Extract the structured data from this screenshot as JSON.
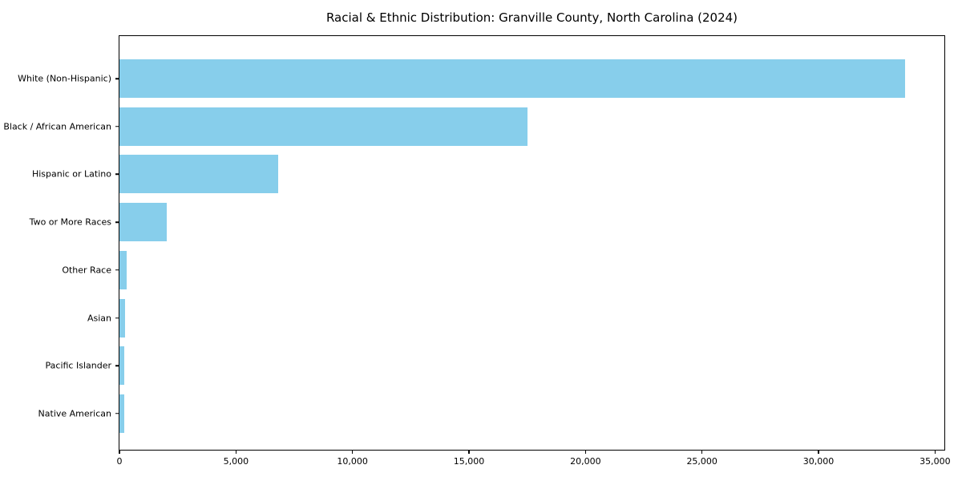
{
  "figure": {
    "title": "Racial & Ethnic Distribution: Granville County, North Carolina (2024)",
    "background_color": "#ffffff",
    "text_color": "#000000"
  },
  "chart_data": {
    "type": "bar",
    "orientation": "horizontal",
    "title": "Racial & Ethnic Distribution: Granville County, North Carolina (2024)",
    "categories": [
      "White (Non-Hispanic)",
      "Black / African American",
      "Hispanic or Latino",
      "Two or More Races",
      "Other Race",
      "Asian",
      "Pacific Islander",
      "Native American"
    ],
    "values": [
      33700,
      17500,
      6800,
      2030,
      300,
      255,
      220,
      190
    ],
    "bar_color": "#87CEEB",
    "xlabel": "",
    "ylabel": "",
    "xlim": [
      0,
      35400
    ],
    "xticks": [
      0,
      5000,
      10000,
      15000,
      20000,
      25000,
      30000,
      35000
    ],
    "xtick_labels": [
      "0",
      "5,000",
      "10,000",
      "15,000",
      "20,000",
      "25,000",
      "30,000",
      "35,000"
    ],
    "grid": false,
    "legend": null,
    "plot_border": true
  }
}
